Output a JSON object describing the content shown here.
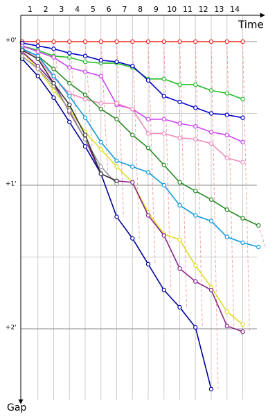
{
  "chart_data": {
    "type": "line",
    "x_label": "Time",
    "y_label": "Gap",
    "x": [
      0,
      1,
      2,
      3,
      4,
      5,
      6,
      7,
      8,
      9,
      10,
      11,
      12,
      13,
      14,
      15
    ],
    "xlim": [
      0,
      15.2
    ],
    "xticks": [
      {
        "value": 0.5,
        "label": "1"
      },
      {
        "value": 1.5,
        "label": "2"
      },
      {
        "value": 2.5,
        "label": "3"
      },
      {
        "value": 3.5,
        "label": "4"
      },
      {
        "value": 4.5,
        "label": "5"
      },
      {
        "value": 5.5,
        "label": "6"
      },
      {
        "value": 6.5,
        "label": "7"
      },
      {
        "value": 7.5,
        "label": "8"
      },
      {
        "value": 8.5,
        "label": "9"
      },
      {
        "value": 9.5,
        "label": "10"
      },
      {
        "value": 10.5,
        "label": "11"
      },
      {
        "value": 11.5,
        "label": "12"
      },
      {
        "value": 12.5,
        "label": "13"
      },
      {
        "value": 13.5,
        "label": "14"
      }
    ],
    "x_grid": [
      1,
      2,
      3,
      4,
      5,
      6,
      7,
      8,
      9,
      10,
      11,
      12,
      13,
      14
    ],
    "ylim": [
      -0.2,
      2.5
    ],
    "y_inverted": true,
    "yticks": [
      {
        "value": 0,
        "label": "+0'"
      },
      {
        "value": 1,
        "label": "+1'"
      },
      {
        "value": 2,
        "label": "+2'"
      }
    ],
    "minor_yticks": [
      0.5,
      1.5
    ],
    "lap_lines": true,
    "series": [
      {
        "color": "#ee2222",
        "values": [
          0,
          0,
          0,
          0,
          0,
          0,
          0,
          0,
          0,
          0,
          0,
          0,
          0,
          0,
          0,
          null
        ]
      },
      {
        "color": "#22bb22",
        "values": [
          0.03,
          0.06,
          0.1,
          0.11,
          0.14,
          0.15,
          0.15,
          0.18,
          0.26,
          0.26,
          0.3,
          0.3,
          0.34,
          0.36,
          0.4,
          null
        ]
      },
      {
        "color": "#0000cc",
        "values": [
          0.01,
          0.03,
          0.05,
          0.08,
          0.1,
          0.13,
          0.14,
          0.17,
          0.27,
          0.38,
          0.42,
          0.46,
          0.5,
          0.51,
          0.53,
          null
        ]
      },
      {
        "color": "#cc44ee",
        "values": [
          0.03,
          0.07,
          0.11,
          0.18,
          0.21,
          0.24,
          0.44,
          0.47,
          0.54,
          0.54,
          0.57,
          0.59,
          0.63,
          0.65,
          0.7,
          null
        ]
      },
      {
        "color": "#ee88bb",
        "values": [
          0.05,
          0.12,
          0.25,
          0.36,
          0.4,
          0.43,
          0.43,
          0.47,
          0.64,
          0.64,
          0.67,
          0.68,
          0.71,
          0.81,
          0.84,
          null
        ]
      },
      {
        "color": "#228822",
        "values": [
          0.05,
          0.1,
          0.19,
          0.29,
          0.37,
          0.47,
          0.54,
          0.65,
          0.74,
          0.86,
          0.98,
          1.04,
          1.1,
          1.17,
          1.23,
          1.28
        ]
      },
      {
        "color": "#1199dd",
        "values": [
          0.05,
          0.1,
          0.24,
          0.38,
          0.53,
          0.7,
          0.83,
          0.87,
          0.91,
          1.0,
          1.14,
          1.21,
          1.25,
          1.36,
          1.4,
          1.43
        ]
      },
      {
        "color": "#dddd22",
        "values": [
          0.07,
          0.19,
          0.34,
          0.47,
          0.63,
          0.75,
          0.87,
          0.98,
          1.19,
          1.34,
          1.38,
          1.56,
          1.71,
          1.88,
          1.97,
          null
        ]
      },
      {
        "color": "#882288",
        "values": [
          0.07,
          0.17,
          0.29,
          0.49,
          0.68,
          0.92,
          0.97,
          0.98,
          1.21,
          1.35,
          1.58,
          1.67,
          1.73,
          1.98,
          2.02,
          null
        ]
      },
      {
        "color": "#000099",
        "values": [
          0.12,
          0.24,
          0.39,
          0.56,
          0.73,
          0.92,
          1.22,
          1.37,
          1.55,
          1.73,
          1.85,
          1.99,
          2.42,
          null,
          null,
          null
        ]
      },
      {
        "color": "#999999",
        "values": [
          0.1,
          0.19,
          0.31,
          0.48,
          0.68,
          0.87,
          0.99,
          null,
          null,
          null,
          null,
          null,
          null,
          null,
          null,
          null
        ]
      },
      {
        "color": "#333333",
        "values": [
          0.06,
          0.12,
          0.29,
          0.44,
          0.65,
          0.92,
          0.97,
          null,
          null,
          null,
          null,
          null,
          null,
          null,
          null,
          null
        ]
      }
    ]
  }
}
